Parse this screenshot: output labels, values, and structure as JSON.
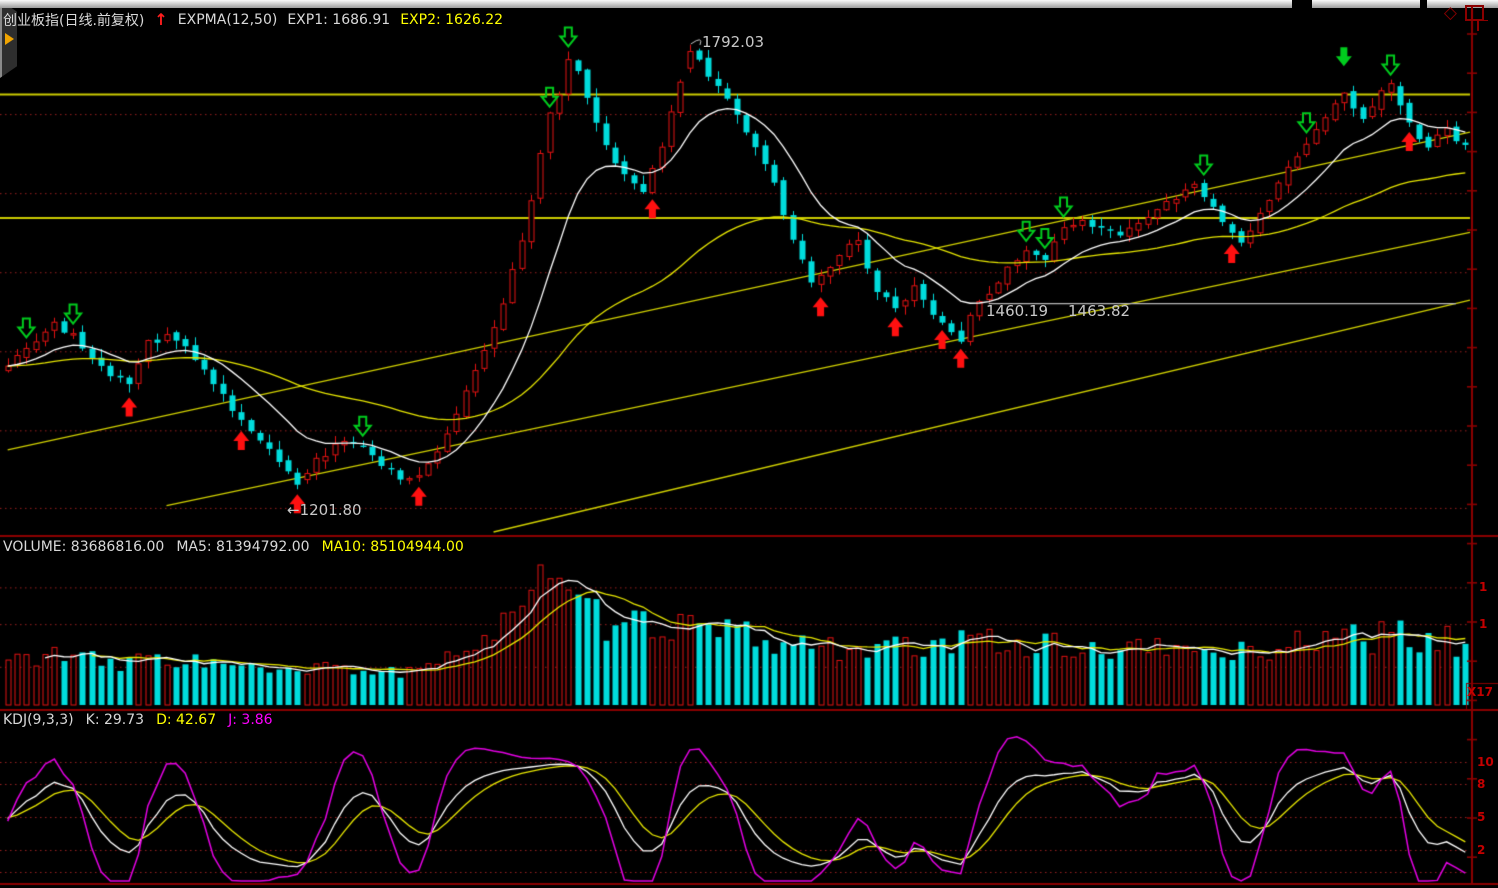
{
  "header": {
    "title": "创业板指(日线.前复权)",
    "trend_arrow": "↑",
    "indicator": "EXPMA(12,50)",
    "exp1": "EXP1: 1686.91",
    "exp2": "EXP2: 1626.22"
  },
  "window_icons": {
    "diamond": "◇"
  },
  "volume_header": {
    "volume": "VOLUME: 83686816.00",
    "ma5": "MA5: 81394792.00",
    "ma10": "MA10: 85104944.00"
  },
  "kdj_header": {
    "name": "KDJ(9,3,3)",
    "k": "K: 29.73",
    "d": "D: 42.67",
    "j": "J: 3.86"
  },
  "annotations": {
    "high": "1792.03",
    "low": "←1201.80",
    "gap_low": "1460.19",
    "gap_high": "1463.82"
  },
  "axis_labels": {
    "volume_ticks": [
      "1",
      "1"
    ],
    "volume_unit": "X17",
    "kdj_ticks": [
      "10",
      "8",
      "5",
      "2"
    ]
  },
  "colors": {
    "up": "#e31212",
    "down": "#00dcdc",
    "exp1": "#ffffff",
    "exp2": "#e6e600",
    "grid": "#9c2020",
    "axis": "#8b0000",
    "axis_text": "#c40000",
    "trendline": "#d2d200",
    "hline": "#cbcb00",
    "white_line": "#b9b9b9",
    "k": "#ffffff",
    "d": "#e6e600",
    "j": "#e400e4",
    "buy_arrow": "#ff1010",
    "sell_arrow": "#00cc1e"
  },
  "chart_data": {
    "type": "candlestick",
    "title": "创业板指(日线.前复权)",
    "panels": [
      "EXPMA(12,50)",
      "VOLUME",
      "KDJ(9,3,3)"
    ],
    "bars": 157,
    "price_range": [
      1145,
      1817
    ],
    "high_anchor": {
      "bar": 73,
      "price": 1792.03
    },
    "low_anchor": {
      "bar": 31,
      "price": 1201.8
    },
    "expma": {
      "periods": [
        12,
        50
      ],
      "exp1": 1686.91,
      "exp2": 1626.22
    },
    "volume_stats": {
      "volume": 83686816.0,
      "ma5": 81394792.0,
      "ma10": 85104944.0
    },
    "kdj_stats": {
      "params": [
        9,
        3,
        3
      ],
      "k": 29.73,
      "d": 42.67,
      "j": 3.86
    },
    "close_keypoints": [
      [
        0,
        1368
      ],
      [
        2,
        1385
      ],
      [
        5,
        1420
      ],
      [
        7,
        1405
      ],
      [
        9,
        1380
      ],
      [
        11,
        1355
      ],
      [
        13,
        1340
      ],
      [
        15,
        1395
      ],
      [
        17,
        1405
      ],
      [
        19,
        1390
      ],
      [
        21,
        1360
      ],
      [
        24,
        1310
      ],
      [
        27,
        1270
      ],
      [
        29,
        1235
      ],
      [
        31,
        1208
      ],
      [
        33,
        1240
      ],
      [
        35,
        1258
      ],
      [
        37,
        1266
      ],
      [
        39,
        1245
      ],
      [
        41,
        1226
      ],
      [
        43,
        1212
      ],
      [
        45,
        1232
      ],
      [
        47,
        1276
      ],
      [
        49,
        1330
      ],
      [
        51,
        1386
      ],
      [
        53,
        1452
      ],
      [
        55,
        1528
      ],
      [
        57,
        1650
      ],
      [
        58,
        1700
      ],
      [
        59,
        1725
      ],
      [
        60,
        1770
      ],
      [
        61,
        1760
      ],
      [
        62,
        1720
      ],
      [
        63,
        1690
      ],
      [
        64,
        1655
      ],
      [
        66,
        1618
      ],
      [
        68,
        1598
      ],
      [
        70,
        1660
      ],
      [
        72,
        1745
      ],
      [
        73,
        1784
      ],
      [
        75,
        1752
      ],
      [
        76,
        1740
      ],
      [
        78,
        1700
      ],
      [
        80,
        1655
      ],
      [
        82,
        1610
      ],
      [
        84,
        1530
      ],
      [
        86,
        1475
      ],
      [
        88,
        1498
      ],
      [
        90,
        1525
      ],
      [
        91,
        1530
      ],
      [
        93,
        1468
      ],
      [
        95,
        1440
      ],
      [
        97,
        1468
      ],
      [
        99,
        1430
      ],
      [
        101,
        1412
      ],
      [
        102,
        1400
      ],
      [
        103,
        1430
      ],
      [
        105,
        1464
      ],
      [
        107,
        1494
      ],
      [
        109,
        1520
      ],
      [
        111,
        1510
      ],
      [
        113,
        1548
      ],
      [
        115,
        1560
      ],
      [
        117,
        1546
      ],
      [
        119,
        1542
      ],
      [
        121,
        1558
      ],
      [
        123,
        1574
      ],
      [
        125,
        1590
      ],
      [
        127,
        1604
      ],
      [
        128,
        1592
      ],
      [
        130,
        1560
      ],
      [
        132,
        1528
      ],
      [
        134,
        1565
      ],
      [
        136,
        1605
      ],
      [
        138,
        1645
      ],
      [
        140,
        1682
      ],
      [
        142,
        1712
      ],
      [
        143,
        1728
      ],
      [
        144,
        1705
      ],
      [
        145,
        1690
      ],
      [
        146,
        1706
      ],
      [
        147,
        1728
      ],
      [
        148,
        1742
      ],
      [
        149,
        1715
      ],
      [
        150,
        1685
      ],
      [
        151,
        1668
      ],
      [
        152,
        1660
      ],
      [
        153,
        1672
      ],
      [
        154,
        1680
      ],
      [
        155,
        1668
      ],
      [
        156,
        1662
      ]
    ],
    "volume_keypoints": [
      [
        0,
        34
      ],
      [
        4,
        40
      ],
      [
        8,
        36
      ],
      [
        12,
        30
      ],
      [
        16,
        38
      ],
      [
        20,
        34
      ],
      [
        24,
        30
      ],
      [
        28,
        26
      ],
      [
        31,
        24
      ],
      [
        35,
        30
      ],
      [
        40,
        26
      ],
      [
        44,
        24
      ],
      [
        46,
        30
      ],
      [
        48,
        40
      ],
      [
        50,
        52
      ],
      [
        52,
        62
      ],
      [
        54,
        72
      ],
      [
        55,
        85
      ],
      [
        56,
        92
      ],
      [
        57,
        96
      ],
      [
        58,
        88
      ],
      [
        60,
        80
      ],
      [
        62,
        72
      ],
      [
        64,
        62
      ],
      [
        66,
        58
      ],
      [
        68,
        62
      ],
      [
        70,
        66
      ],
      [
        72,
        62
      ],
      [
        74,
        58
      ],
      [
        76,
        56
      ],
      [
        78,
        54
      ],
      [
        80,
        52
      ],
      [
        83,
        48
      ],
      [
        86,
        46
      ],
      [
        89,
        44
      ],
      [
        92,
        46
      ],
      [
        95,
        44
      ],
      [
        98,
        42
      ],
      [
        101,
        46
      ],
      [
        104,
        52
      ],
      [
        106,
        50
      ],
      [
        108,
        48
      ],
      [
        111,
        46
      ],
      [
        114,
        44
      ],
      [
        117,
        42
      ],
      [
        120,
        44
      ],
      [
        124,
        42
      ],
      [
        128,
        44
      ],
      [
        131,
        40
      ],
      [
        134,
        42
      ],
      [
        137,
        46
      ],
      [
        140,
        52
      ],
      [
        142,
        58
      ],
      [
        144,
        54
      ],
      [
        146,
        50
      ],
      [
        148,
        56
      ],
      [
        150,
        52
      ],
      [
        152,
        48
      ],
      [
        154,
        50
      ],
      [
        156,
        46
      ]
    ],
    "grid_prices": [
      1700,
      1595,
      1490,
      1385,
      1280,
      1177
    ],
    "volume_grid_fracs": [
      0.8,
      0.55,
      0.26
    ],
    "kdj_grid_values": [
      100,
      80,
      50,
      20,
      0
    ],
    "yellow_hlines": [
      1726,
      1562
    ],
    "white_segment": {
      "price": 1449,
      "from_bar": 105,
      "to_bar": 155
    },
    "trendlines": [
      {
        "from_bar": 0,
        "from_price": 1254,
        "to_bar": 157,
        "to_price": 1676
      },
      {
        "from_bar": 17,
        "from_price": 1180,
        "to_bar": 157,
        "to_price": 1543
      },
      {
        "from_bar": 52,
        "from_price": 1145,
        "to_bar": 157,
        "to_price": 1453
      }
    ],
    "signals": {
      "buy_bars": [
        13,
        25,
        31,
        44,
        69,
        87,
        95,
        100,
        102,
        131,
        150
      ],
      "sell_bars": [
        2,
        7,
        38,
        58,
        60,
        109,
        111,
        113,
        128,
        139,
        148
      ],
      "sell_solid_bars": [
        143
      ]
    }
  }
}
